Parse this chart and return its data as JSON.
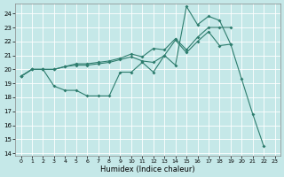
{
  "xlabel": "Humidex (Indice chaleur)",
  "bg_color": "#c5e8e8",
  "line_color": "#2e7d6e",
  "grid_color": "#ffffff",
  "xlim": [
    -0.5,
    23.5
  ],
  "ylim": [
    13.8,
    24.7
  ],
  "yticks": [
    14,
    15,
    16,
    17,
    18,
    19,
    20,
    21,
    22,
    23,
    24
  ],
  "xticks": [
    0,
    1,
    2,
    3,
    4,
    5,
    6,
    7,
    8,
    9,
    10,
    11,
    12,
    13,
    14,
    15,
    16,
    17,
    18,
    19,
    20,
    21,
    22,
    23
  ],
  "line1_x": [
    0,
    1,
    2,
    3,
    4,
    5,
    6,
    7,
    8,
    9,
    10,
    11,
    12,
    13,
    14,
    15,
    16,
    17,
    18,
    19,
    20,
    21,
    22
  ],
  "line1_y": [
    19.5,
    20.0,
    20.0,
    18.8,
    18.5,
    18.5,
    18.1,
    18.1,
    18.1,
    19.8,
    19.8,
    20.5,
    19.8,
    21.0,
    20.3,
    24.5,
    23.2,
    23.8,
    23.5,
    21.8,
    19.3,
    16.8,
    14.5
  ],
  "line2_x": [
    0,
    1,
    2,
    3,
    4,
    5,
    6,
    7,
    8,
    9,
    10,
    11,
    12,
    13,
    14,
    15,
    16,
    17,
    18,
    19
  ],
  "line2_y": [
    19.5,
    20.0,
    20.0,
    20.0,
    20.2,
    20.4,
    20.4,
    20.5,
    20.6,
    20.8,
    21.1,
    20.9,
    21.5,
    21.4,
    22.2,
    21.4,
    22.3,
    23.0,
    23.0,
    23.0
  ],
  "line3_x": [
    0,
    1,
    2,
    3,
    4,
    5,
    6,
    7,
    8,
    9,
    10,
    11,
    12,
    13,
    14,
    15,
    16,
    17,
    18,
    19
  ],
  "line3_y": [
    19.5,
    20.0,
    20.0,
    20.0,
    20.2,
    20.3,
    20.3,
    20.4,
    20.5,
    20.7,
    20.9,
    20.6,
    20.5,
    21.0,
    22.1,
    21.2,
    22.0,
    22.7,
    21.7,
    21.8
  ]
}
